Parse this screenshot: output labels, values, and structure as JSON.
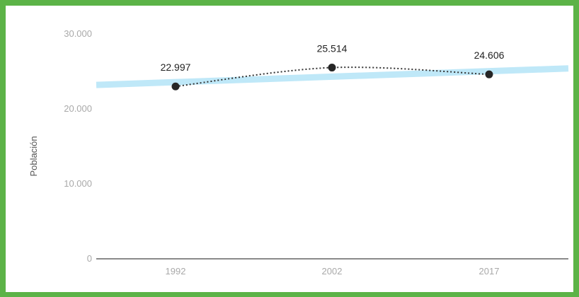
{
  "chart_data": {
    "type": "line",
    "title": "",
    "xlabel": "",
    "ylabel": "Población",
    "categories": [
      "1992",
      "2002",
      "2017"
    ],
    "series": [
      {
        "values": [
          22997,
          25514,
          24606
        ],
        "labels": [
          "22.997",
          "25.514",
          "24.606"
        ],
        "style": "dotted"
      }
    ],
    "trendline": {
      "start": 23200,
      "end": 25400
    },
    "y_ticks": [
      {
        "value": 0,
        "label": "0"
      },
      {
        "value": 10000,
        "label": "10.000"
      },
      {
        "value": 20000,
        "label": "20.000"
      },
      {
        "value": 30000,
        "label": "30.000"
      }
    ],
    "ylim": [
      0,
      30000
    ],
    "grid": false,
    "legend": "none"
  },
  "colors": {
    "border": "#5cb347",
    "point": "#262626",
    "line": "#333333",
    "trend": "#bfe8f8",
    "axis": "#444444"
  }
}
